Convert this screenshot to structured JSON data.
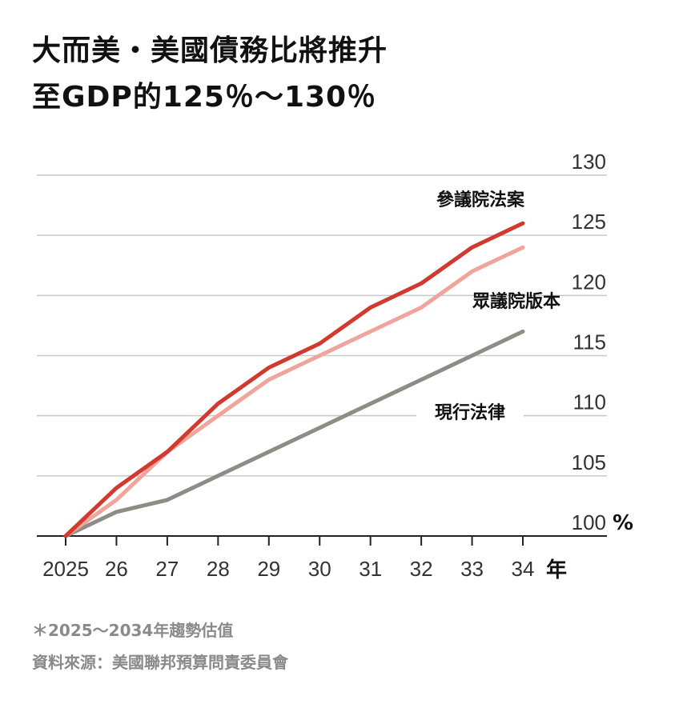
{
  "title_line1": "大而美・美國債務比將推升",
  "title_line2": "至GDP的125％～130％",
  "footnote": "＊2025～2034年趨勢估值",
  "source": "資料來源：美國聯邦預算問責委員會",
  "chart_data": {
    "type": "line",
    "x": [
      2025,
      2026,
      2027,
      2028,
      2029,
      2030,
      2031,
      2032,
      2033,
      2034
    ],
    "x_tick_labels": [
      "2025",
      "26",
      "27",
      "28",
      "29",
      "30",
      "31",
      "32",
      "33",
      "34"
    ],
    "xlabel": "年",
    "ylabel": "%",
    "ylim": [
      100,
      130
    ],
    "y_ticks": [
      100,
      105,
      110,
      115,
      120,
      125,
      130
    ],
    "grid": true,
    "y_axis_side": "right",
    "series": [
      {
        "name": "參議院法案",
        "color": "#d13a2f",
        "values": [
          100,
          104,
          107,
          111,
          114,
          116,
          119,
          121,
          124,
          126
        ]
      },
      {
        "name": "眾議院版本",
        "color": "#efa49c",
        "values": [
          100,
          103,
          107,
          110,
          113,
          115,
          117,
          119,
          122,
          124
        ]
      },
      {
        "name": "現行法律",
        "color": "#8d8d86",
        "values": [
          100,
          102,
          103,
          105,
          107,
          109,
          111,
          113,
          115,
          117
        ]
      }
    ]
  }
}
